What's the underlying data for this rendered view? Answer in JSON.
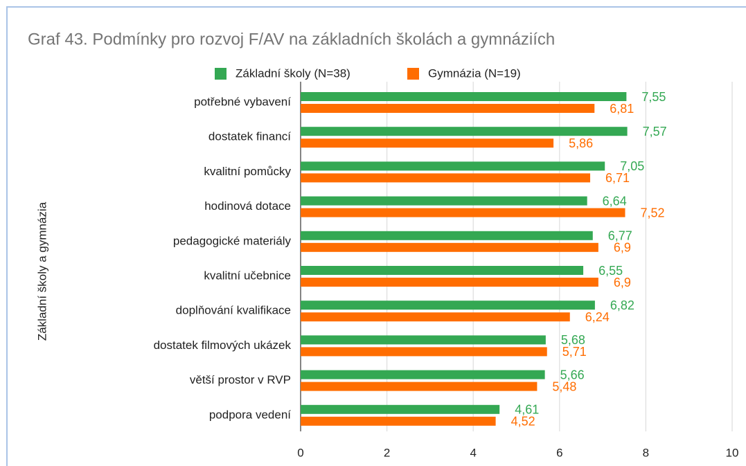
{
  "chart_data": {
    "type": "barh",
    "title": "Graf 43. Podmínky pro rozvoj F/AV na základních školách a gymnáziích",
    "y_label": "Základní školy a gymnázia",
    "categories": [
      "potřebné vybavení",
      "dostatek financí",
      "kvalitní pomůcky",
      "hodinová dotace",
      "pedagogické materiály",
      "kvalitní učebnice",
      "doplňování kvalifikace",
      "dostatek filmových ukázek",
      "větší prostor v RVP",
      "podpora vedení"
    ],
    "series": [
      {
        "name": "Základní školy (N=38)",
        "color": "#34a853",
        "values": [
          7.55,
          7.57,
          7.05,
          6.64,
          6.77,
          6.55,
          6.82,
          5.68,
          5.66,
          4.61
        ],
        "value_labels": [
          "7,55",
          "7,57",
          "7,05",
          "6,64",
          "6,77",
          "6,55",
          "6,82",
          "5,68",
          "5,66",
          "4,61"
        ]
      },
      {
        "name": "Gymnázia (N=19)",
        "color": "#ff6d01",
        "values": [
          6.81,
          5.86,
          6.71,
          7.52,
          6.9,
          6.9,
          6.24,
          5.71,
          5.48,
          4.52
        ],
        "value_labels": [
          "6,81",
          "5,86",
          "6,71",
          "7,52",
          "6,9",
          "6,9",
          "6,24",
          "5,71",
          "5,48",
          "4,52"
        ]
      }
    ],
    "xlim": [
      0,
      10
    ],
    "xticks": [
      0,
      2,
      4,
      6,
      8,
      10
    ],
    "grid": true,
    "legend": "top"
  }
}
